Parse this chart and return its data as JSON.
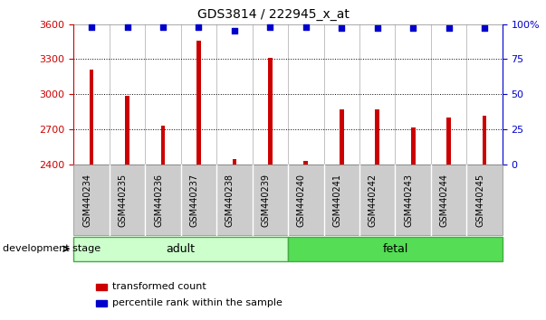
{
  "title": "GDS3814 / 222945_x_at",
  "categories": [
    "GSM440234",
    "GSM440235",
    "GSM440236",
    "GSM440237",
    "GSM440238",
    "GSM440239",
    "GSM440240",
    "GSM440241",
    "GSM440242",
    "GSM440243",
    "GSM440244",
    "GSM440245"
  ],
  "bar_values": [
    3210,
    2990,
    2730,
    3460,
    2450,
    3310,
    2430,
    2870,
    2870,
    2720,
    2800,
    2820
  ],
  "percentile_values": [
    98,
    98,
    98,
    98,
    95,
    98,
    98,
    97,
    97,
    97,
    97,
    97
  ],
  "bar_color": "#cc0000",
  "dot_color": "#0000cc",
  "ylim_left": [
    2400,
    3600
  ],
  "ylim_right": [
    0,
    100
  ],
  "yticks_left": [
    2400,
    2700,
    3000,
    3300,
    3600
  ],
  "yticks_right": [
    0,
    25,
    50,
    75,
    100
  ],
  "adult_samples": 6,
  "fetal_samples": 6,
  "adult_label": "adult",
  "fetal_label": "fetal",
  "group_label": "development stage",
  "legend_bar_label": "transformed count",
  "legend_dot_label": "percentile rank within the sample",
  "adult_color": "#ccffcc",
  "fetal_color": "#55dd55",
  "grid_color": "#000000",
  "bg_color": "#ffffff",
  "ytick_left_color": "#cc0000",
  "ytick_right_color": "#0000cc",
  "gray_col_color": "#cccccc",
  "bar_width": 0.12
}
